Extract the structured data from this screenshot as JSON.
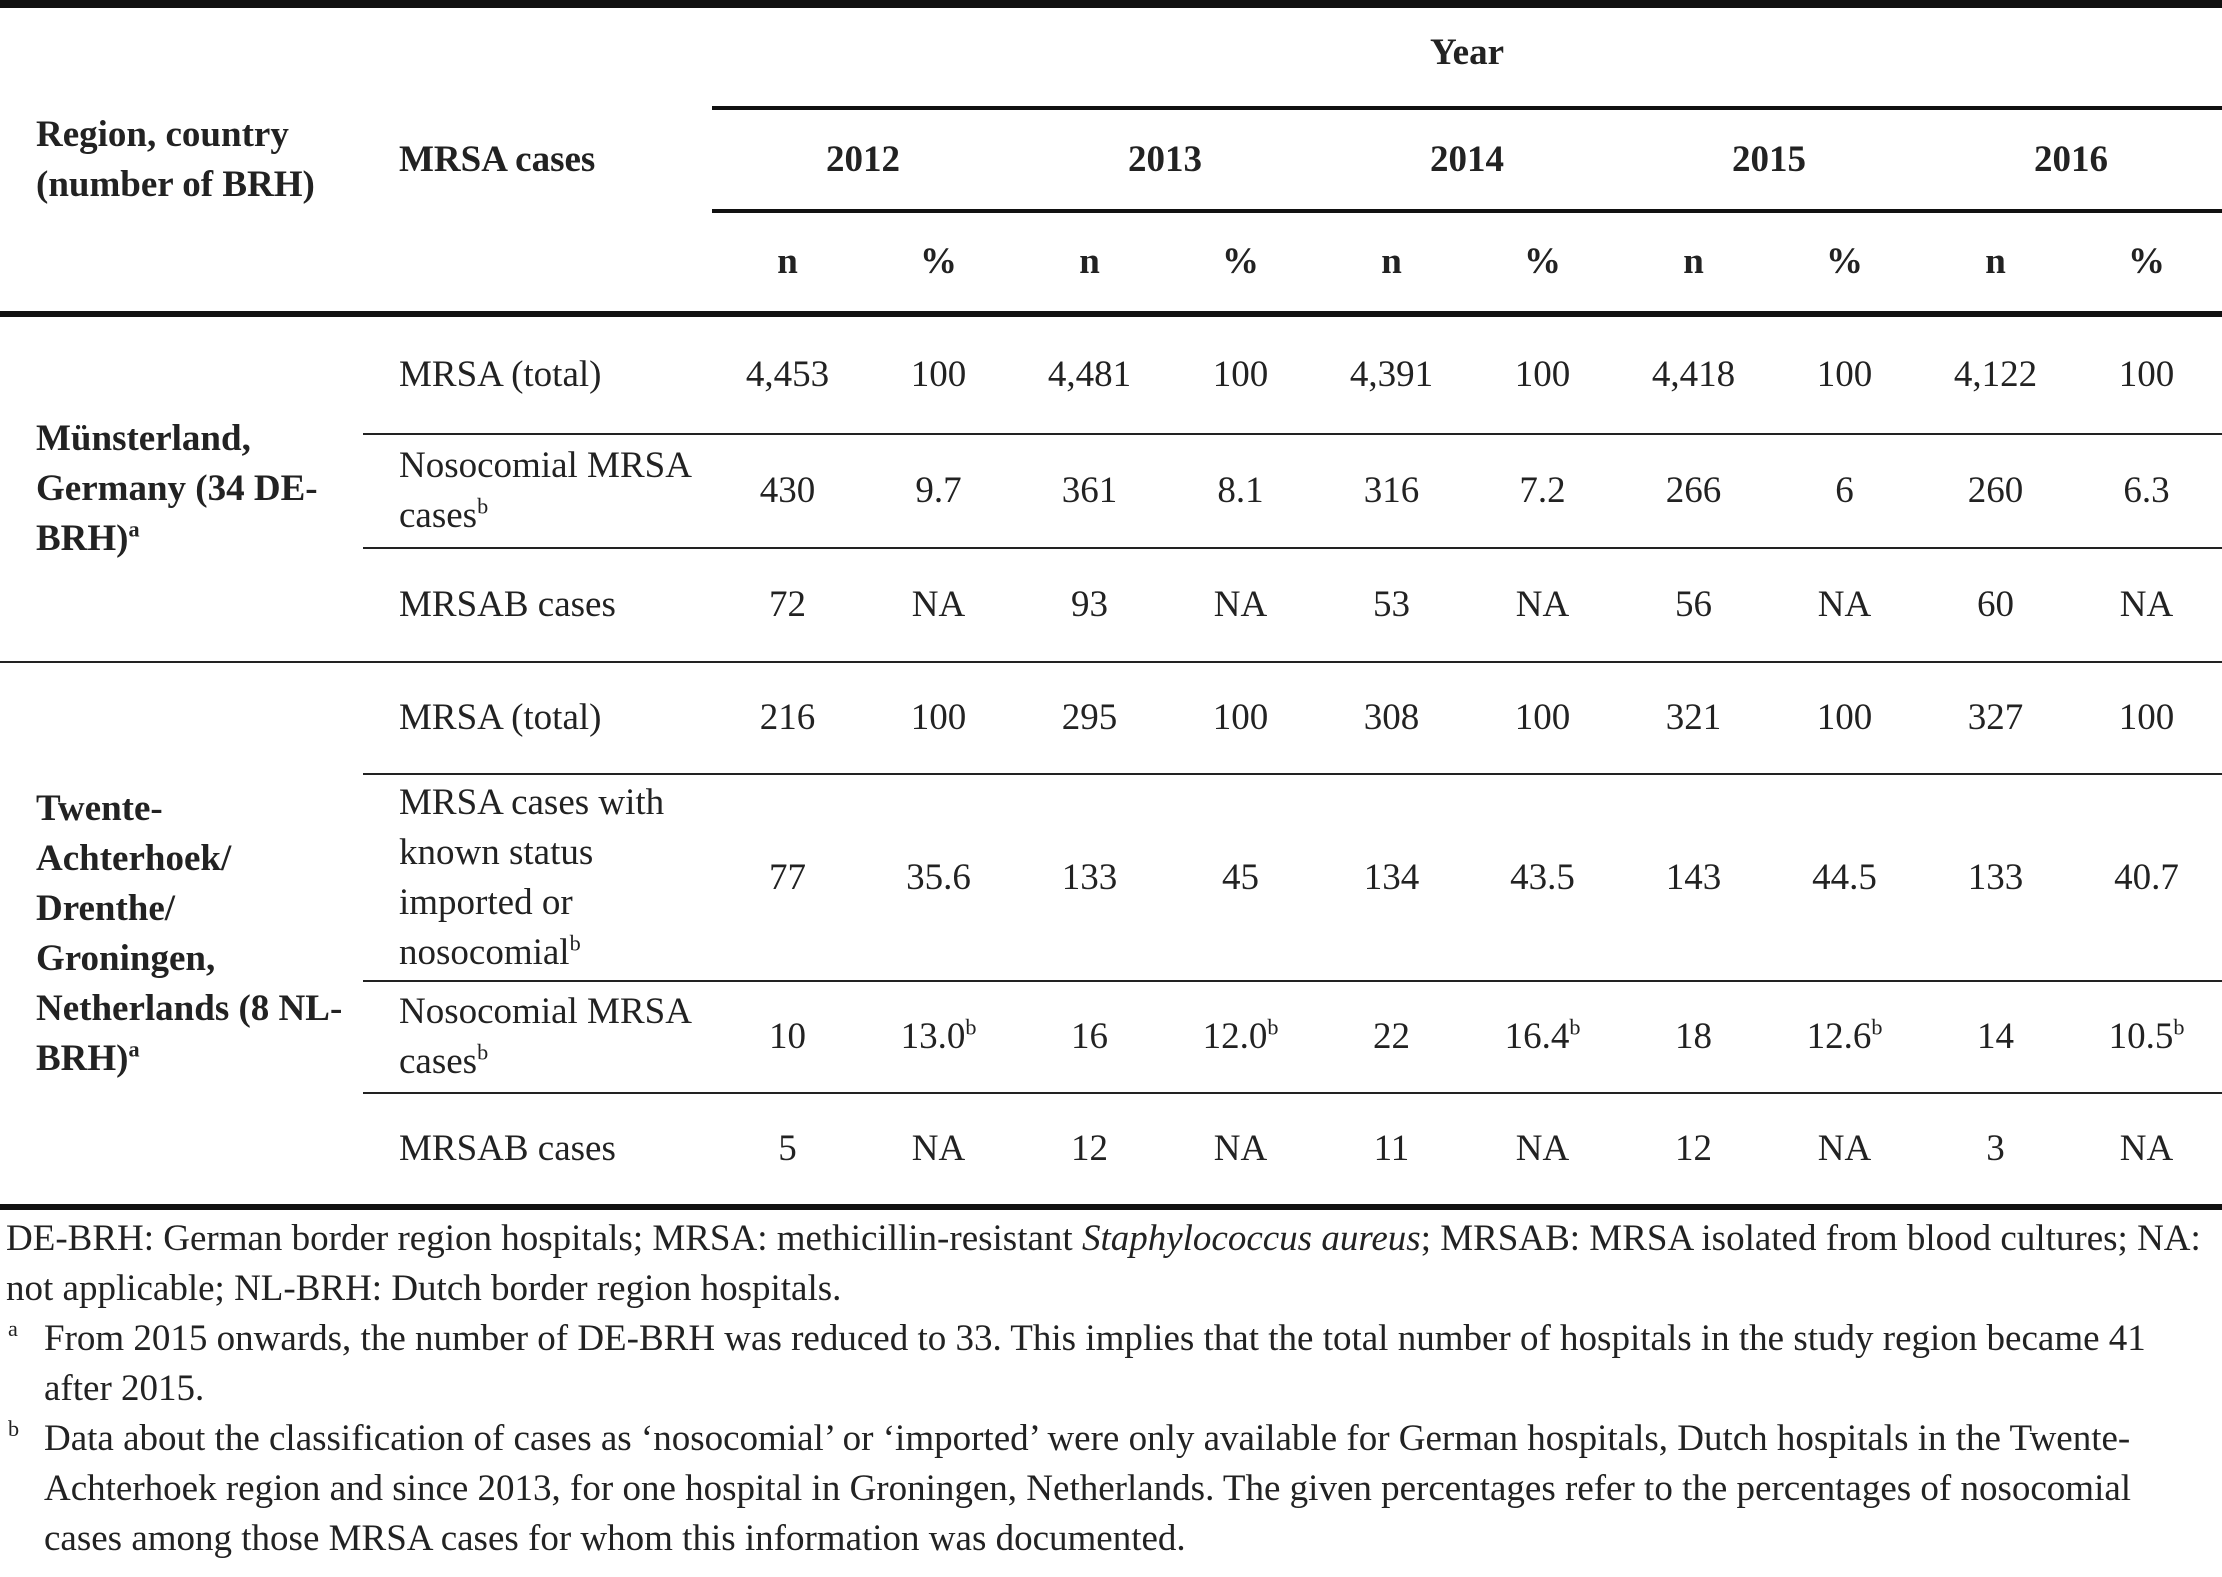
{
  "table": {
    "header": {
      "region": "Region, country (number of BRH)",
      "cases": "MRSA cases",
      "year": "Year",
      "years": [
        "2012",
        "2013",
        "2014",
        "2015",
        "2016"
      ],
      "n": "n",
      "pct": "%"
    },
    "groups": [
      {
        "region": "Münsterland, Germany (34 DE-BRH)",
        "region_sup": "a",
        "rows": [
          {
            "label": "MRSA (total)",
            "cells": [
              "4,453",
              "100",
              "4,481",
              "100",
              "4,391",
              "100",
              "4,418",
              "100",
              "4,122",
              "100"
            ]
          },
          {
            "label": "Nosocomial MRSA cases",
            "label_sup": "b",
            "cells": [
              "430",
              "9.7",
              "361",
              "8.1",
              "316",
              "7.2",
              "266",
              "6",
              "260",
              "6.3"
            ]
          },
          {
            "label": "MRSAB cases",
            "cells": [
              "72",
              "NA",
              "93",
              "NA",
              "53",
              "NA",
              "56",
              "NA",
              "60",
              "NA"
            ]
          }
        ]
      },
      {
        "region": "Twente-Achterhoek/ Drenthe/ Groningen, Netherlands (8 NL-BRH)",
        "region_sup": "a",
        "rows": [
          {
            "label": "MRSA (total)",
            "cells": [
              "216",
              "100",
              "295",
              "100",
              "308",
              "100",
              "321",
              "100",
              "327",
              "100"
            ]
          },
          {
            "label": "MRSA cases with known status imported or nosocomial",
            "label_sup": "b",
            "cells": [
              "77",
              "35.6",
              "133",
              "45",
              "134",
              "43.5",
              "143",
              "44.5",
              "133",
              "40.7"
            ]
          },
          {
            "label": "Nosocomial MRSA cases",
            "label_sup": "b",
            "cells": [
              "10",
              {
                "text": "13.0",
                "sup": "b"
              },
              "16",
              {
                "text": "12.0",
                "sup": "b"
              },
              "22",
              {
                "text": "16.4",
                "sup": "b"
              },
              "18",
              {
                "text": "12.6",
                "sup": "b"
              },
              "14",
              {
                "text": "10.5",
                "sup": "b"
              }
            ]
          },
          {
            "label": "MRSAB cases",
            "cells": [
              "5",
              "NA",
              "12",
              "NA",
              "11",
              "NA",
              "12",
              "NA",
              "3",
              "NA"
            ]
          }
        ]
      }
    ]
  },
  "footnotes": {
    "abbreviations": [
      "DE-BRH: German border region hospitals; MRSA: methicillin-resistant ",
      "Staphylococcus aureus",
      "; MRSAB: MRSA isolated from blood cultures; NA: not applicable; NL-BRH: Dutch border region hospitals."
    ],
    "notes": [
      {
        "mark": "a",
        "text": "From 2015 onwards, the number of DE-BRH was reduced to 33. This implies that the total number of hospitals in the study region became 41 after 2015."
      },
      {
        "mark": "b",
        "text": "Data about the classification of cases as ‘nosocomial’ or ‘imported’ were only available for German hospitals, Dutch hospitals in the Twente-Achterhoek region and since 2013, for one hospital in Groningen, Netherlands. The given percentages refer to the percentages of nosocomial cases among those MRSA cases for whom this information was documented."
      }
    ]
  }
}
